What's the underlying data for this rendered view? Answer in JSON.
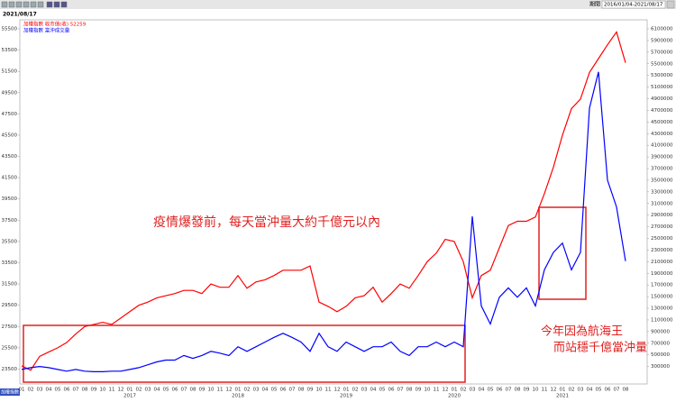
{
  "chart_data": {
    "type": "line",
    "date_label": "2021/08/17",
    "period_name": "期間",
    "period": "2016/01/04-2021/08/17",
    "corner_label": "加權指數",
    "categories": [
      "01",
      "02",
      "03",
      "04",
      "05",
      "06",
      "07",
      "08",
      "09",
      "10",
      "11",
      "12",
      "01",
      "02",
      "03",
      "04",
      "05",
      "06",
      "07",
      "08",
      "09",
      "10",
      "11",
      "12",
      "01",
      "02",
      "03",
      "04",
      "05",
      "06",
      "07",
      "08",
      "09",
      "10",
      "11",
      "12",
      "01",
      "02",
      "03",
      "04",
      "05",
      "06",
      "07",
      "08",
      "09",
      "10",
      "11",
      "12",
      "01",
      "02",
      "03",
      "04",
      "05",
      "06",
      "07",
      "08",
      "09",
      "10",
      "11",
      "12",
      "01",
      "02",
      "03",
      "04",
      "05",
      "06",
      "07",
      "08"
    ],
    "year_labels": [
      "2017",
      "2018",
      "2019",
      "2020",
      "2021"
    ],
    "series": [
      {
        "name": "加權指數 收市值(收) 52259",
        "color": "#ff0000",
        "axis": "y",
        "values": [
          23800,
          23400,
          24700,
          25100,
          25500,
          26000,
          26800,
          27500,
          27700,
          27900,
          27700,
          28300,
          28900,
          29500,
          29800,
          30200,
          30400,
          30600,
          30900,
          30900,
          30600,
          31500,
          31200,
          31200,
          32300,
          31100,
          31700,
          31900,
          32300,
          32800,
          32800,
          32800,
          33200,
          29800,
          29400,
          28900,
          29400,
          30200,
          30400,
          31200,
          29800,
          30600,
          31500,
          31100,
          32300,
          33600,
          34400,
          35700,
          35500,
          33600,
          30200,
          32300,
          32800,
          34900,
          37000,
          37400,
          37400,
          37800,
          40000,
          42500,
          45500,
          48000,
          48900,
          51400,
          52700,
          54000,
          55200,
          52300
        ]
      },
      {
        "name": "加權指數 當沖成交量",
        "color": "#0000ff",
        "axis": "y2",
        "values": [
          250000,
          280000,
          300000,
          280000,
          250000,
          220000,
          250000,
          220000,
          210000,
          210000,
          220000,
          220000,
          250000,
          280000,
          330000,
          380000,
          410000,
          410000,
          490000,
          440000,
          490000,
          560000,
          530000,
          490000,
          640000,
          560000,
          640000,
          720000,
          800000,
          870000,
          800000,
          720000,
          560000,
          870000,
          640000,
          560000,
          720000,
          640000,
          560000,
          640000,
          640000,
          720000,
          560000,
          490000,
          640000,
          640000,
          720000,
          640000,
          720000,
          640000,
          2880000,
          1340000,
          1030000,
          1490000,
          1650000,
          1490000,
          1650000,
          1340000,
          1960000,
          2260000,
          2420000,
          1960000,
          2260000,
          4740000,
          5360000,
          3500000,
          3040000,
          2110000
        ]
      }
    ],
    "ylim": [
      22100,
      55500
    ],
    "yticks": [
      55500,
      53500,
      51500,
      49500,
      47500,
      45500,
      43500,
      41500,
      39500,
      37500,
      35500,
      33500,
      31500,
      29500,
      27500,
      25500,
      23500
    ],
    "y2lim": [
      0,
      6100000
    ],
    "y2ticks": [
      6100000,
      5900000,
      5700000,
      5500000,
      5300000,
      5100000,
      4900000,
      4700000,
      4500000,
      4300000,
      4100000,
      3900000,
      3700000,
      3500000,
      3300000,
      3100000,
      2900000,
      2700000,
      2500000,
      2300000,
      2100000,
      1900000,
      1700000,
      1500000,
      1300000,
      1100000,
      900000,
      700000,
      500000,
      300000
    ],
    "annotations": [
      "疫情爆發前，每天當沖量大約千億元以內",
      "今年因為航海王",
      "而站穩千億當沖量"
    ]
  }
}
